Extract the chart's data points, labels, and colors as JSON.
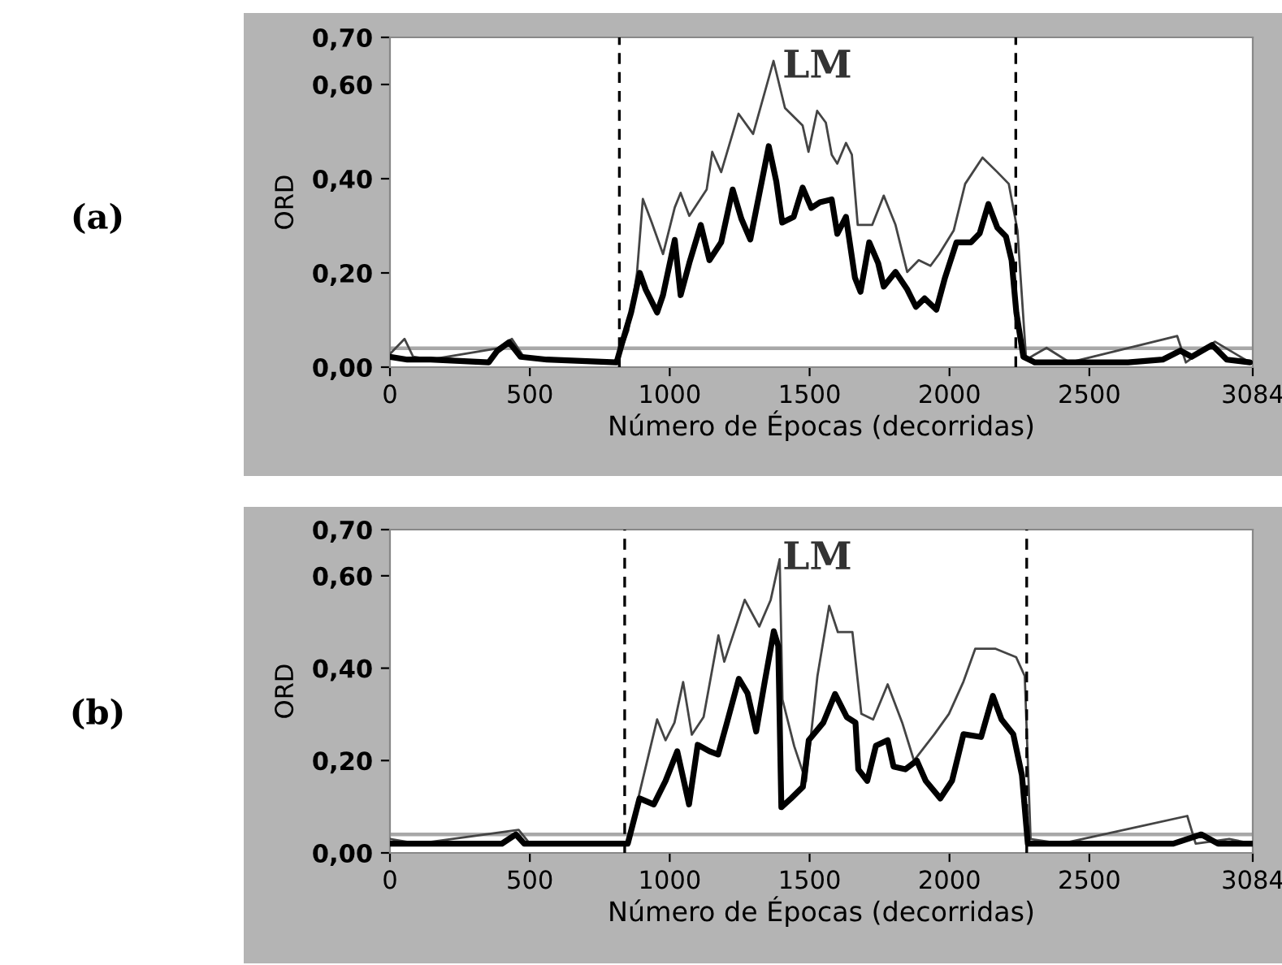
{
  "chart_data": [
    {
      "type": "line",
      "xlabel": "Número de Épocas (decorridas)",
      "ylabel": "ORD",
      "xlim": [
        0,
        3084
      ],
      "ylim": [
        0,
        0.7
      ],
      "xticks": [
        0,
        500,
        1000,
        1500,
        2000,
        2500,
        3084
      ],
      "yticks": [
        {
          "value": 0,
          "label": "0,00"
        },
        {
          "value": 0.2,
          "label": "0,20"
        },
        {
          "value": 0.4,
          "label": "0,40"
        },
        {
          "value": 0.6,
          "label": "0,60"
        },
        {
          "value": 0.7,
          "label": "0,70"
        }
      ],
      "grid": false,
      "legend": false,
      "annotations": [
        "(a)",
        "LM"
      ],
      "ref_lines": [
        {
          "axis": "y",
          "value": 0.04,
          "color": "#a8a8a8",
          "line_style": "solid"
        },
        {
          "axis": "x",
          "value": 820,
          "color": "#000000",
          "line_style": "dashed"
        },
        {
          "axis": "x",
          "value": 2237,
          "color": "#000000",
          "line_style": "dashed"
        }
      ],
      "series": [
        {
          "color": "#444444",
          "x": [
            0,
            52,
            83,
            145,
            384,
            436,
            478,
            810,
            852,
            883,
            904,
            935,
            976,
            1018,
            1039,
            1070,
            1132,
            1152,
            1184,
            1246,
            1298,
            1371,
            1412,
            1475,
            1496,
            1527,
            1558,
            1579,
            1599,
            1630,
            1651,
            1672,
            1724,
            1765,
            1807,
            1849,
            1890,
            1932,
            1963,
            2015,
            2056,
            2118,
            2171,
            2212,
            2243,
            2274,
            2347,
            2430,
            2814,
            2845,
            2949,
            3074
          ],
          "values": [
            0.028,
            0.06,
            0.022,
            0.016,
            0.04,
            0.06,
            0.022,
            0.01,
            0.078,
            0.2,
            0.357,
            0.308,
            0.24,
            0.339,
            0.37,
            0.321,
            0.377,
            0.457,
            0.414,
            0.538,
            0.495,
            0.65,
            0.55,
            0.513,
            0.457,
            0.544,
            0.519,
            0.451,
            0.432,
            0.476,
            0.451,
            0.302,
            0.302,
            0.364,
            0.302,
            0.202,
            0.227,
            0.215,
            0.24,
            0.29,
            0.389,
            0.445,
            0.414,
            0.389,
            0.29,
            0.016,
            0.041,
            0.01,
            0.066,
            0.01,
            0.054,
            0.01
          ]
        },
        {
          "color": "#000000",
          "x": [
            0,
            62,
            145,
            353,
            384,
            426,
            467,
            561,
            810,
            831,
            862,
            893,
            914,
            955,
            976,
            1018,
            1039,
            1070,
            1111,
            1142,
            1184,
            1225,
            1256,
            1288,
            1319,
            1354,
            1381,
            1402,
            1443,
            1475,
            1506,
            1537,
            1579,
            1599,
            1630,
            1662,
            1682,
            1713,
            1745,
            1765,
            1807,
            1849,
            1880,
            1911,
            1953,
            1984,
            2025,
            2077,
            2108,
            2139,
            2171,
            2202,
            2222,
            2239,
            2264,
            2305,
            2638,
            2762,
            2825,
            2866,
            2939,
            2991,
            3074
          ],
          "values": [
            0.022,
            0.016,
            0.016,
            0.01,
            0.035,
            0.053,
            0.022,
            0.016,
            0.01,
            0.054,
            0.116,
            0.2,
            0.165,
            0.116,
            0.153,
            0.27,
            0.153,
            0.221,
            0.302,
            0.227,
            0.265,
            0.377,
            0.315,
            0.271,
            0.364,
            0.469,
            0.394,
            0.307,
            0.319,
            0.381,
            0.338,
            0.35,
            0.356,
            0.283,
            0.319,
            0.19,
            0.16,
            0.265,
            0.221,
            0.171,
            0.202,
            0.165,
            0.128,
            0.146,
            0.122,
            0.19,
            0.265,
            0.265,
            0.284,
            0.346,
            0.296,
            0.277,
            0.227,
            0.116,
            0.022,
            0.01,
            0.01,
            0.016,
            0.035,
            0.022,
            0.047,
            0.016,
            0.01
          ]
        }
      ]
    },
    {
      "type": "line",
      "xlabel": "Número de Épocas (decorridas)",
      "ylabel": "ORD",
      "xlim": [
        0,
        3084
      ],
      "ylim": [
        0,
        0.7
      ],
      "xticks": [
        0,
        500,
        1000,
        1500,
        2000,
        2500,
        3084
      ],
      "yticks": [
        {
          "value": 0,
          "label": "0,00"
        },
        {
          "value": 0.2,
          "label": "0,20"
        },
        {
          "value": 0.4,
          "label": "0,40"
        },
        {
          "value": 0.6,
          "label": "0,60"
        },
        {
          "value": 0.7,
          "label": "0,70"
        }
      ],
      "grid": false,
      "legend": false,
      "annotations": [
        "(b)",
        "LM"
      ],
      "ref_lines": [
        {
          "axis": "y",
          "value": 0.04,
          "color": "#a8a8a8",
          "line_style": "solid"
        },
        {
          "axis": "x",
          "value": 839,
          "color": "#000000",
          "line_style": "dashed"
        },
        {
          "axis": "x",
          "value": 2276,
          "color": "#000000",
          "line_style": "dashed"
        }
      ],
      "series": [
        {
          "color": "#444444",
          "x": [
            0,
            100,
            460,
            500,
            850,
            892,
            955,
            985,
            1017,
            1048,
            1079,
            1121,
            1174,
            1195,
            1268,
            1320,
            1361,
            1393,
            1403,
            1445,
            1487,
            1528,
            1570,
            1601,
            1653,
            1685,
            1727,
            1779,
            1831,
            1873,
            1946,
            1998,
            2050,
            2092,
            2165,
            2238,
            2269,
            2290,
            2400,
            2850,
            2880,
            3000,
            3084
          ],
          "values": [
            0.03,
            0.02,
            0.05,
            0.02,
            0.02,
            0.13,
            0.289,
            0.244,
            0.282,
            0.37,
            0.256,
            0.294,
            0.471,
            0.414,
            0.548,
            0.49,
            0.548,
            0.636,
            0.332,
            0.231,
            0.155,
            0.383,
            0.535,
            0.478,
            0.478,
            0.301,
            0.289,
            0.365,
            0.282,
            0.2,
            0.257,
            0.301,
            0.371,
            0.442,
            0.442,
            0.424,
            0.383,
            0.03,
            0.02,
            0.08,
            0.02,
            0.03,
            0.02
          ]
        },
        {
          "color": "#000000",
          "x": [
            0,
            400,
            450,
            480,
            850,
            892,
            943,
            985,
            1027,
            1069,
            1100,
            1142,
            1173,
            1205,
            1247,
            1278,
            1309,
            1340,
            1372,
            1388,
            1399,
            1434,
            1476,
            1497,
            1549,
            1591,
            1633,
            1664,
            1674,
            1706,
            1737,
            1779,
            1800,
            1842,
            1883,
            1915,
            1967,
            2009,
            2050,
            2113,
            2155,
            2186,
            2228,
            2259,
            2280,
            2400,
            2800,
            2900,
            2960,
            3084
          ],
          "values": [
            0.02,
            0.02,
            0.04,
            0.02,
            0.02,
            0.118,
            0.105,
            0.156,
            0.22,
            0.105,
            0.234,
            0.22,
            0.213,
            0.283,
            0.377,
            0.346,
            0.263,
            0.372,
            0.48,
            0.448,
            0.099,
            0.118,
            0.143,
            0.244,
            0.282,
            0.344,
            0.294,
            0.282,
            0.181,
            0.156,
            0.232,
            0.244,
            0.187,
            0.181,
            0.2,
            0.156,
            0.118,
            0.156,
            0.257,
            0.251,
            0.34,
            0.289,
            0.257,
            0.168,
            0.02,
            0.02,
            0.02,
            0.04,
            0.02,
            0.02
          ]
        }
      ]
    }
  ]
}
